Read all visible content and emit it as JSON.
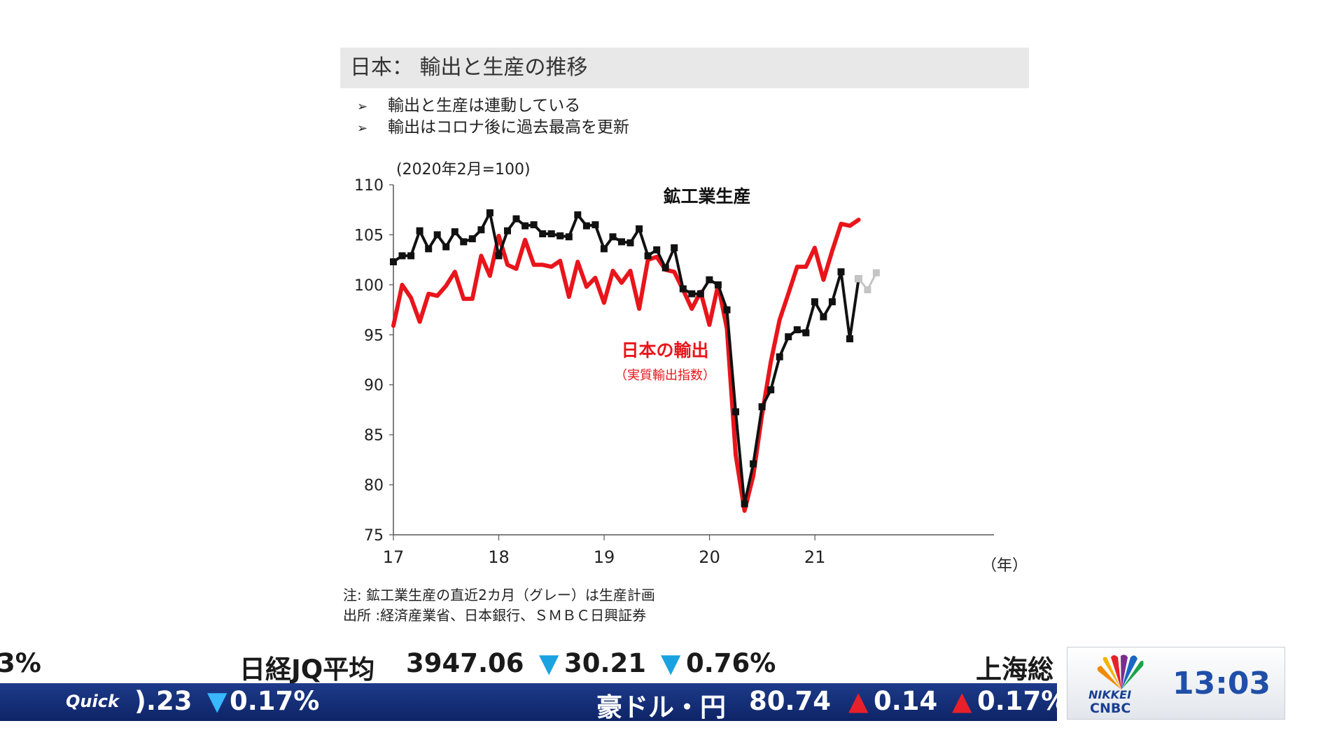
{
  "slide": {
    "title": "日本： 輸出と生産の推移",
    "bullets": [
      {
        "mark": "➢",
        "text": "輸出と生産は連動している"
      },
      {
        "mark": "➢",
        "text": "輸出はコロナ後に過去最高を更新"
      }
    ],
    "notes": [
      "注: 鉱工業生産の直近2カ月（グレー）は生産計画",
      "出所 :経済産業省、日本銀行、ＳＭＢＣ日興証券"
    ]
  },
  "chart_data": {
    "type": "line",
    "unit_note": "(2020年2月=100)",
    "x_unit": "（年）",
    "x_ticks": [
      "17",
      "18",
      "19",
      "20",
      "21"
    ],
    "ylim": [
      75,
      110
    ],
    "y_ticks": [
      110,
      105,
      100,
      95,
      90,
      85,
      80,
      75
    ],
    "grid": false,
    "colors": {
      "production": "#111111",
      "export": "#e8151b",
      "plan": "#c4c4c4"
    },
    "series": [
      {
        "name": "鉱工業生産",
        "key": "production",
        "marker": "square",
        "x_start": 2017.0,
        "x_step": 0.0833,
        "values": [
          102.3,
          102.9,
          102.9,
          105.4,
          103.6,
          105.0,
          103.8,
          105.3,
          104.3,
          104.6,
          105.5,
          107.2,
          102.9,
          105.4,
          106.6,
          105.9,
          106.0,
          105.1,
          105.1,
          104.9,
          104.8,
          107.0,
          105.9,
          106.0,
          103.6,
          104.8,
          104.3,
          104.2,
          105.6,
          102.9,
          103.5,
          101.7,
          103.7,
          99.6,
          99.1,
          99.1,
          100.5,
          100.0,
          97.5,
          87.3,
          78.1,
          82.1,
          87.8,
          89.5,
          92.8,
          94.8,
          95.5,
          95.2,
          98.3,
          96.8,
          98.3,
          101.3,
          94.6,
          100.6
        ]
      },
      {
        "name": "鉱工業生産 生産計画",
        "key": "plan",
        "marker": "square",
        "x_start": 2021.4167,
        "x_step": 0.0833,
        "values": [
          100.6,
          99.5,
          101.2
        ]
      },
      {
        "name": "日本の輸出",
        "subname": "（実質輸出指数）",
        "key": "export",
        "marker": "none",
        "x_start": 2017.0,
        "x_step": 0.0833,
        "values": [
          95.9,
          100.0,
          98.7,
          96.3,
          99.1,
          98.9,
          99.9,
          101.3,
          98.6,
          98.6,
          102.9,
          100.9,
          104.9,
          102.0,
          101.6,
          104.5,
          102.0,
          102.0,
          101.8,
          102.4,
          98.8,
          102.3,
          99.8,
          100.7,
          98.2,
          101.4,
          100.2,
          101.4,
          97.6,
          102.5,
          102.8,
          101.5,
          101.3,
          99.5,
          97.6,
          99.3,
          96.0,
          100.0,
          95.6,
          83.0,
          77.4,
          80.9,
          87.0,
          92.3,
          96.5,
          99.1,
          101.8,
          101.8,
          103.7,
          100.5,
          103.4,
          106.1,
          105.9,
          106.5
        ]
      }
    ],
    "annotations": [
      {
        "text": "鉱工業生産",
        "for": "production"
      },
      {
        "text": "日本の輸出",
        "for": "export"
      },
      {
        "text": "（実質輸出指数）",
        "for": "export"
      }
    ]
  },
  "ticker": {
    "row1": {
      "fragment_left": "3%",
      "name": "日経JQ平均",
      "value": "3947.06",
      "arrow1": "▼",
      "change": "30.21",
      "arrow2": "▼",
      "pct": "0.76%",
      "next_name": "上海総"
    },
    "row2": {
      "source_logo": "Quick",
      "fragment_value": ").23",
      "fragment_arrow": "▼",
      "fragment_pct": "0.17%",
      "name": "豪ドル・円",
      "value": "80.74",
      "arrow1": "▲",
      "change": "0.14",
      "arrow2": "▲",
      "pct": "0.17%"
    }
  },
  "broadcaster": {
    "nikkei": "NIKKEI",
    "cnbc": "CNBC",
    "time": "13:03"
  }
}
